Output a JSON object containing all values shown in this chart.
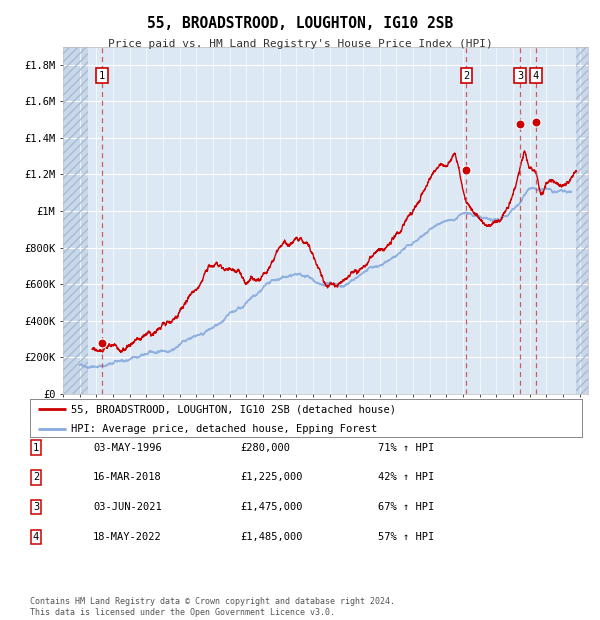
{
  "title": "55, BROADSTROOD, LOUGHTON, IG10 2SB",
  "subtitle": "Price paid vs. HM Land Registry's House Price Index (HPI)",
  "background_color": "#dce9f5",
  "fig_bg_color": "#ffffff",
  "grid_color": "#ffffff",
  "ylim": [
    0,
    1900000
  ],
  "yticks": [
    0,
    200000,
    400000,
    600000,
    800000,
    1000000,
    1200000,
    1400000,
    1600000,
    1800000
  ],
  "ytick_labels": [
    "£0",
    "£200K",
    "£400K",
    "£600K",
    "£800K",
    "£1M",
    "£1.2M",
    "£1.4M",
    "£1.6M",
    "£1.8M"
  ],
  "xlim_start": 1994.0,
  "xlim_end": 2025.5,
  "sale_color": "#cc0000",
  "hpi_color": "#88aadd",
  "dashed_line_color": "#cc4444",
  "legend_label_sale": "55, BROADSTROOD, LOUGHTON, IG10 2SB (detached house)",
  "legend_label_hpi": "HPI: Average price, detached house, Epping Forest",
  "transactions": [
    {
      "num": 1,
      "date_dec": 1996.34,
      "price": 280000,
      "label": "03-MAY-1996",
      "price_str": "£280,000",
      "hpi_pct": "71% ↑ HPI"
    },
    {
      "num": 2,
      "date_dec": 2018.2,
      "price": 1225000,
      "label": "16-MAR-2018",
      "price_str": "£1,225,000",
      "hpi_pct": "42% ↑ HPI"
    },
    {
      "num": 3,
      "date_dec": 2021.42,
      "price": 1475000,
      "label": "03-JUN-2021",
      "price_str": "£1,475,000",
      "hpi_pct": "67% ↑ HPI"
    },
    {
      "num": 4,
      "date_dec": 2022.37,
      "price": 1485000,
      "label": "18-MAY-2022",
      "price_str": "£1,485,000",
      "hpi_pct": "57% ↑ HPI"
    }
  ],
  "footer": "Contains HM Land Registry data © Crown copyright and database right 2024.\nThis data is licensed under the Open Government Licence v3.0."
}
